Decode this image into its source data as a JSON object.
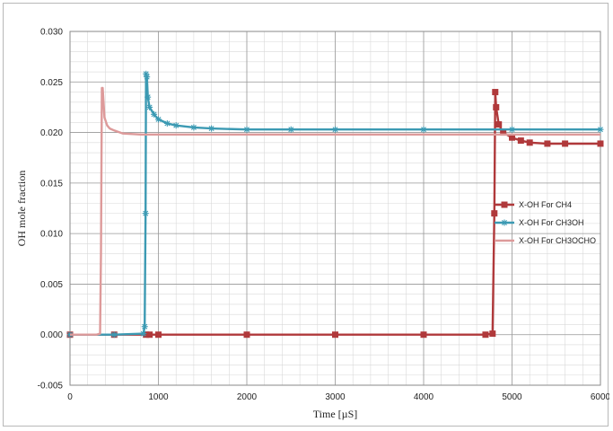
{
  "chart_data": {
    "type": "line",
    "xlabel": "Time [µS]",
    "ylabel": "OH mole fraction",
    "xlim": [
      0,
      6000
    ],
    "ylim": [
      -0.005,
      0.03
    ],
    "x_ticks": [
      "0",
      "1000",
      "2000",
      "3000",
      "4000",
      "5000",
      "6000"
    ],
    "y_ticks": [
      "-0.005",
      "0.000",
      "0.005",
      "0.010",
      "0.015",
      "0.020",
      "0.025",
      "0.030"
    ],
    "grid": true,
    "legend_position": "right",
    "series": [
      {
        "name": "X-OH For CH4",
        "color": "#b0393b",
        "marker": "square",
        "x": [
          0,
          500,
          860,
          900,
          1000,
          2000,
          3000,
          4000,
          4700,
          4780,
          4800,
          4810,
          4820,
          4850,
          4900,
          5000,
          5100,
          5200,
          5400,
          5600,
          6000
        ],
        "y": [
          0.0,
          0.0,
          0.0,
          0.0,
          0.0,
          0.0,
          0.0,
          0.0,
          0.0,
          0.0001,
          0.012,
          0.024,
          0.0225,
          0.0208,
          0.02,
          0.0195,
          0.0192,
          0.019,
          0.0189,
          0.0189,
          0.0189
        ]
      },
      {
        "name": "X-OH For CH3OH",
        "color": "#3c9ab3",
        "marker": "star",
        "x": [
          0,
          500,
          830,
          845,
          855,
          860,
          870,
          880,
          900,
          950,
          1000,
          1100,
          1200,
          1400,
          1600,
          2000,
          2500,
          3000,
          4000,
          5000,
          6000
        ],
        "y": [
          0.0,
          0.0,
          0.0001,
          0.0008,
          0.012,
          0.0258,
          0.0255,
          0.0235,
          0.0225,
          0.0218,
          0.0213,
          0.0209,
          0.0207,
          0.0205,
          0.0204,
          0.0203,
          0.0203,
          0.0203,
          0.0203,
          0.0203,
          0.0203
        ]
      },
      {
        "name": "X-OH For CH3OCHO",
        "color": "#dd9a9a",
        "marker": "none",
        "x": [
          0,
          300,
          340,
          350,
          360,
          370,
          390,
          420,
          450,
          500,
          600,
          800,
          1000,
          2000,
          3000,
          4000,
          5000,
          6000
        ],
        "y": [
          0.0,
          0.0,
          0.0001,
          0.008,
          0.0244,
          0.0244,
          0.0215,
          0.0207,
          0.0204,
          0.0202,
          0.0199,
          0.0198,
          0.0198,
          0.0198,
          0.0198,
          0.0198,
          0.0198,
          0.0198
        ]
      }
    ]
  }
}
